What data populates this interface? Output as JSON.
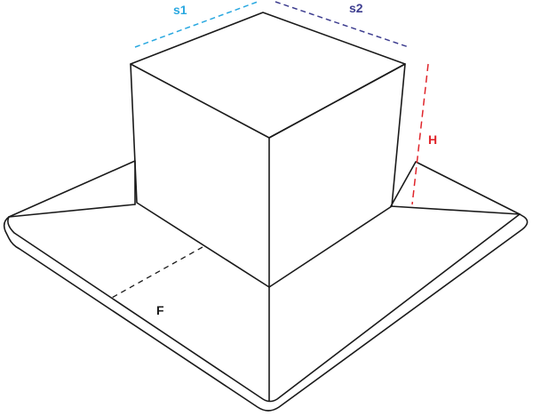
{
  "labels": {
    "s1": "s1",
    "s2": "s2",
    "H": "H",
    "F": "F"
  },
  "colors": {
    "outline": "#1a1a1a",
    "s1": "#29a8e0",
    "s2": "#3d3d8f",
    "H": "#e0252b",
    "F": "#1a1a1a"
  }
}
